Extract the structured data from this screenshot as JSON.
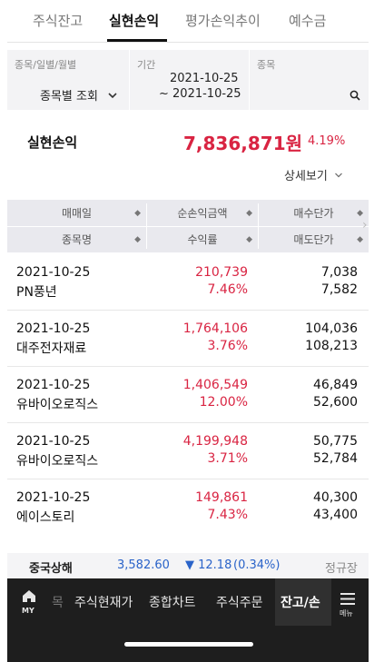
{
  "tabs": [
    {
      "label": "주식잔고"
    },
    {
      "label": "실현손익"
    },
    {
      "label": "평가손익추이"
    },
    {
      "label": "예수금"
    }
  ],
  "filter": {
    "type_label": "종목/일별/월별",
    "type_value": "종목별 조회",
    "period_label": "기간",
    "period_start": "2021-10-25",
    "period_end": "~ 2021-10-25",
    "stock_label": "종목"
  },
  "summary": {
    "label": "실현손익",
    "value": "7,836,871원",
    "rate": "4.19%",
    "detail_label": "상세보기"
  },
  "table": {
    "headers": {
      "trade_date": "매매일",
      "net_profit": "순손익금액",
      "buy_price": "매수단가",
      "stock_name": "종목명",
      "return_rate": "수익률",
      "sell_price": "매도단가"
    },
    "rows": [
      {
        "date": "2021-10-25",
        "name": "PN풍년",
        "amount": "210,739",
        "rate": "7.46%",
        "buy": "7,038",
        "sell": "7,582"
      },
      {
        "date": "2021-10-25",
        "name": "대주전자재료",
        "amount": "1,764,106",
        "rate": "3.76%",
        "buy": "104,036",
        "sell": "108,213"
      },
      {
        "date": "2021-10-25",
        "name": "유바이오로직스",
        "amount": "1,406,549",
        "rate": "12.00%",
        "buy": "46,849",
        "sell": "52,600"
      },
      {
        "date": "2021-10-25",
        "name": "유바이오로직스",
        "amount": "4,199,948",
        "rate": "3.71%",
        "buy": "50,775",
        "sell": "52,784"
      },
      {
        "date": "2021-10-25",
        "name": "에이스토리",
        "amount": "149,861",
        "rate": "7.43%",
        "buy": "40,300",
        "sell": "43,400"
      }
    ]
  },
  "ticker": {
    "index_name": "중국상해",
    "index_value": "3,582.60",
    "change": "▼ 12.18",
    "change_rate": "(0.34%)",
    "market_status": "정규장"
  },
  "nav": {
    "home_label": "MY",
    "partial_label": "목",
    "items": [
      "주식현재가",
      "종합차트",
      "주식주문",
      "잔고/손"
    ],
    "menu_label": "메뉴"
  },
  "colors": {
    "accent_red": "#d92442",
    "down_blue": "#2a63c9"
  }
}
